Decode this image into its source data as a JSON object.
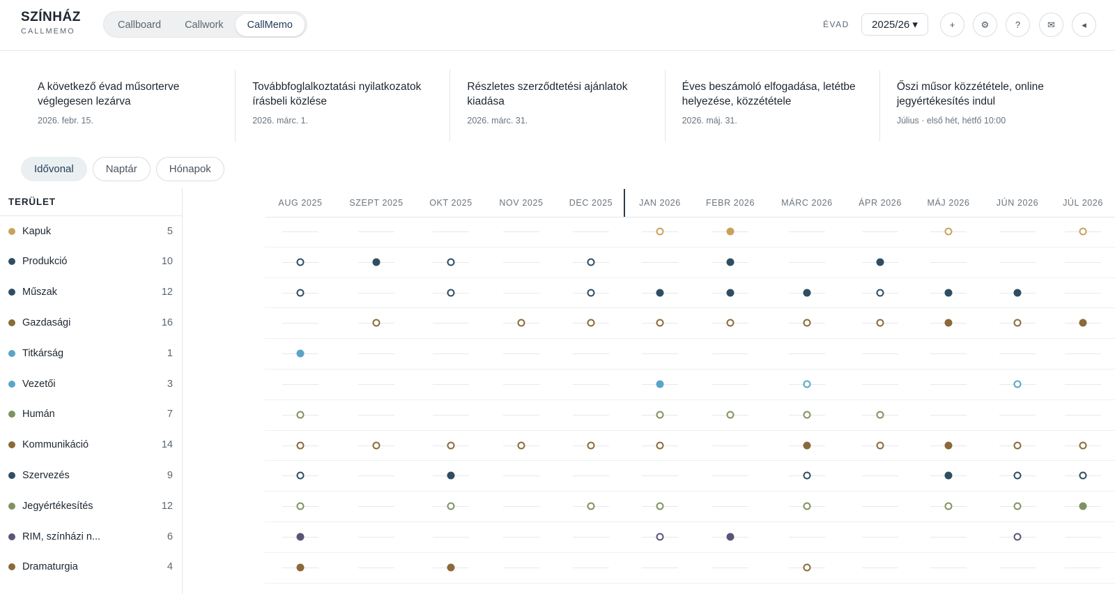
{
  "app": {
    "brand_title": "SZÍNHÁZ",
    "brand_subtitle": "CALLMEMO"
  },
  "nav_tabs": [
    {
      "label": "Callboard",
      "active": false
    },
    {
      "label": "Callwork",
      "active": false
    },
    {
      "label": "CallMemo",
      "active": true
    }
  ],
  "season": {
    "label": "ÉVAD",
    "value": "2025/26 ▾"
  },
  "header_icons": [
    {
      "name": "plus-icon",
      "glyph": "+"
    },
    {
      "name": "gear-icon",
      "glyph": "⚙"
    },
    {
      "name": "help-icon",
      "glyph": "?"
    },
    {
      "name": "mail-icon",
      "glyph": "✉"
    },
    {
      "name": "collapse-icon",
      "glyph": "◂"
    }
  ],
  "deadlines": [
    {
      "title": "A következő évad műsorterve véglegesen lezárva",
      "date": "2026. febr. 15."
    },
    {
      "title": "Továbbfoglalkoztatási nyilatkozatok írásbeli közlése",
      "date": "2026. márc. 1."
    },
    {
      "title": "Részletes szerződtetési ajánlatok kiadása",
      "date": "2026. márc. 31."
    },
    {
      "title": "Éves beszámoló elfogadása, letétbe helyezése, közzététele",
      "date": "2026. máj. 31."
    },
    {
      "title": "Őszi műsor közzététele, online jegyértékesítés indul",
      "date": "Július · első hét, hétfő 10:00"
    }
  ],
  "views": [
    {
      "label": "Idővonal",
      "active": true
    },
    {
      "label": "Naptár",
      "active": false
    },
    {
      "label": "Hónapok",
      "active": false
    }
  ],
  "area_header": "TERÜLET",
  "months": [
    "AUG 2025",
    "SZEPT 2025",
    "OKT 2025",
    "NOV 2025",
    "DEC 2025",
    "JAN 2026",
    "FEBR 2026",
    "MÁRC 2026",
    "ÁPR 2026",
    "MÁJ 2026",
    "JÚN 2026",
    "JÚL 2026"
  ],
  "colors": {
    "gold": "#c9a25a",
    "navy": "#2f4d63",
    "brown": "#8a6a3a",
    "sky": "#5aa4c9",
    "olive": "#7f9260",
    "purple": "#5a5478"
  },
  "areas": [
    {
      "name": "Kapuk",
      "count": "5",
      "color": "gold",
      "markers": [
        "",
        "",
        "",
        "",
        "",
        "o",
        "f",
        "",
        "",
        "o",
        "",
        "o"
      ]
    },
    {
      "name": "Produkció",
      "count": "10",
      "color": "navy",
      "markers": [
        "o",
        "f",
        "o",
        "",
        "o",
        "",
        "f",
        "",
        "f",
        "",
        "",
        ""
      ]
    },
    {
      "name": "Műszak",
      "count": "12",
      "color": "navy",
      "markers": [
        "o",
        "",
        "o",
        "",
        "o",
        "f",
        "f",
        "f",
        "o",
        "f",
        "f",
        ""
      ]
    },
    {
      "name": "Gazdasági",
      "count": "16",
      "color": "brown",
      "markers": [
        "",
        "o",
        "",
        "o",
        "o",
        "o",
        "o",
        "o",
        "o",
        "f",
        "o",
        "f"
      ]
    },
    {
      "name": "Titkárság",
      "count": "1",
      "color": "sky",
      "markers": [
        "f",
        "",
        "",
        "",
        "",
        "",
        "",
        "",
        "",
        "",
        "",
        ""
      ]
    },
    {
      "name": "Vezetői",
      "count": "3",
      "color": "sky",
      "markers": [
        "",
        "",
        "",
        "",
        "",
        "f",
        "",
        "o",
        "",
        "",
        "o",
        ""
      ]
    },
    {
      "name": "Humán",
      "count": "7",
      "color": "olive",
      "markers": [
        "o",
        "",
        "",
        "",
        "",
        "o",
        "o",
        "o",
        "o",
        "",
        "",
        ""
      ]
    },
    {
      "name": "Kommunikáció",
      "count": "14",
      "color": "brown",
      "markers": [
        "o",
        "o",
        "o",
        "o",
        "o",
        "o",
        "",
        "f",
        "o",
        "f",
        "o",
        "o"
      ]
    },
    {
      "name": "Szervezés",
      "count": "9",
      "color": "navy",
      "markers": [
        "o",
        "",
        "f",
        "",
        "",
        "",
        "",
        "o",
        "",
        "f",
        "o",
        "o"
      ]
    },
    {
      "name": "Jegyértékesítés",
      "count": "12",
      "color": "olive",
      "markers": [
        "o",
        "",
        "o",
        "",
        "o",
        "o",
        "",
        "o",
        "",
        "o",
        "o",
        "f"
      ]
    },
    {
      "name": "RIM, színházi n...",
      "count": "6",
      "color": "purple",
      "markers": [
        "f",
        "",
        "",
        "",
        "",
        "o",
        "f",
        "",
        "",
        "",
        "o",
        ""
      ]
    },
    {
      "name": "Dramaturgia",
      "count": "4",
      "color": "brown",
      "markers": [
        "f",
        "",
        "f",
        "",
        "",
        "",
        "",
        "o",
        "",
        "",
        "",
        ""
      ]
    }
  ]
}
